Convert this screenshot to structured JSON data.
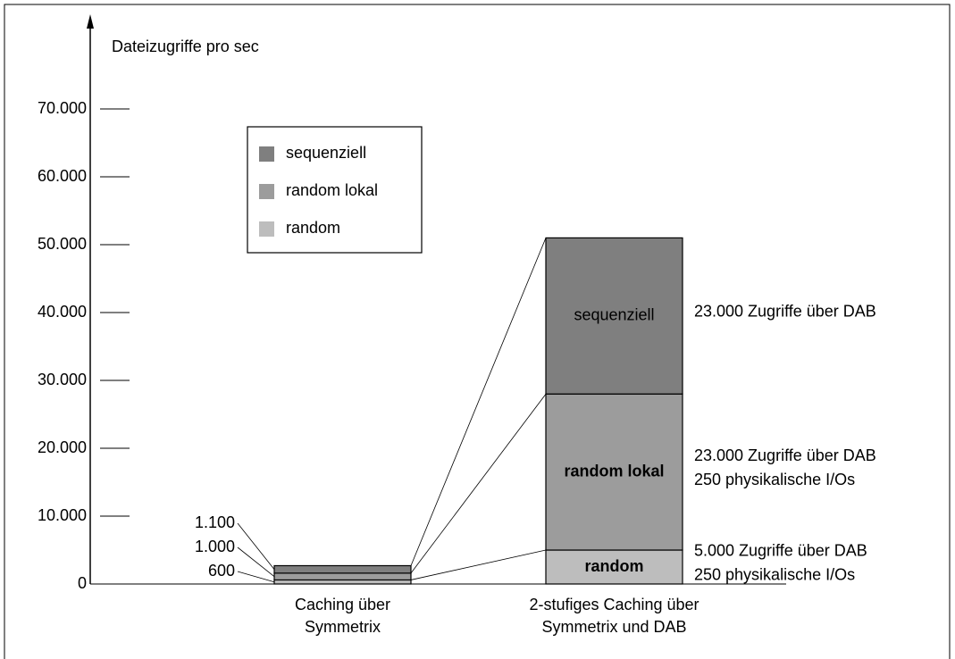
{
  "chart_data": {
    "type": "stacked_bar",
    "y_label": "Dateizugriffe pro sec",
    "categories": [
      [
        "Caching über",
        "Symmetrix"
      ],
      [
        "2-stufiges Caching über",
        "Symmetrix und DAB"
      ]
    ],
    "series": [
      {
        "name": "random",
        "color": "#bdbdbd",
        "values": [
          600,
          5000
        ],
        "value_labels": [
          "600",
          null
        ]
      },
      {
        "name": "random lokal",
        "color": "#9c9c9c",
        "values": [
          1000,
          23000
        ],
        "value_labels": [
          "1.000",
          null
        ]
      },
      {
        "name": "sequenziell",
        "color": "#7f7f7f",
        "values": [
          1100,
          23000
        ],
        "value_labels": [
          "1.100",
          null
        ]
      }
    ],
    "annotations": [
      [
        "5.000 Zugriffe über DAB",
        "250 physikalische I/Os"
      ],
      [
        "23.000 Zugriffe über DAB",
        "250 physikalische I/Os"
      ],
      [
        "23.000 Zugriffe über DAB"
      ]
    ],
    "ylim": [
      0,
      80000
    ],
    "yticks": [
      0,
      {
        "value": 10000,
        "label": "10.000"
      },
      {
        "value": 20000,
        "label": "20.000"
      },
      {
        "value": 30000,
        "label": "30.000"
      },
      {
        "value": 40000,
        "label": "40.000"
      },
      {
        "value": 50000,
        "label": "50.000"
      },
      {
        "value": 60000,
        "label": "60.000"
      },
      {
        "value": 70000,
        "label": "70.000"
      }
    ]
  }
}
